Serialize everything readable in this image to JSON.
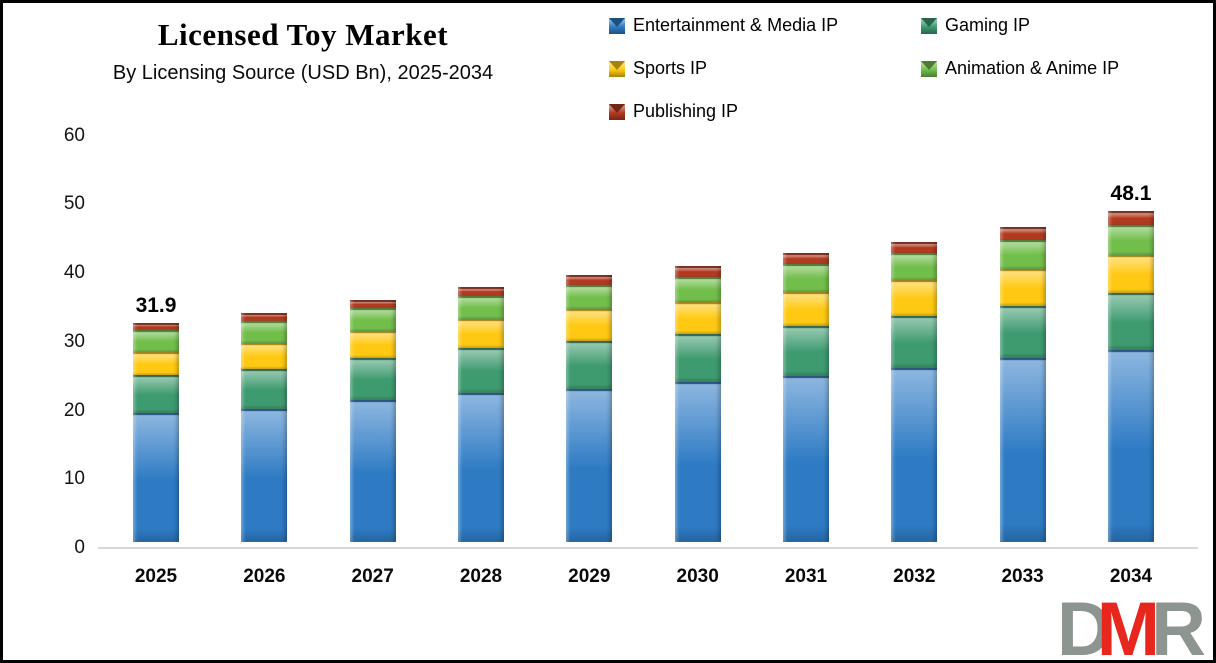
{
  "header": {
    "title": "Licensed Toy Market",
    "subtitle": "By Licensing Source (USD Bn), 2025-2034"
  },
  "watermark": {
    "letters": [
      "D",
      "M",
      "R"
    ],
    "gray": "#8C9590",
    "red": "#E7261D"
  },
  "chart_data": {
    "type": "bar",
    "stacked": true,
    "title": "Licensed Toy Market",
    "subtitle": "By Licensing Source (USD Bn), 2025-2034",
    "categories": [
      "2025",
      "2026",
      "2027",
      "2028",
      "2029",
      "2030",
      "2031",
      "2032",
      "2033",
      "2034"
    ],
    "series": [
      {
        "name": "Entertainment & Media IP",
        "color": "#2E7BC4",
        "values": [
          18.7,
          19.4,
          20.6,
          21.7,
          22.3,
          23.3,
          24.1,
          25.3,
          26.7,
          28.0
        ]
      },
      {
        "name": "Gaming IP",
        "color": "#3E9B70",
        "values": [
          5.6,
          5.8,
          6.2,
          6.5,
          7.0,
          6.9,
          7.3,
          7.6,
          7.6,
          8.2
        ]
      },
      {
        "name": "Sports IP",
        "color": "#FFC913",
        "values": [
          3.4,
          3.7,
          3.9,
          4.3,
          4.6,
          4.7,
          4.9,
          5.2,
          5.4,
          5.5
        ]
      },
      {
        "name": "Animation & Anime IP",
        "color": "#72BE4B",
        "values": [
          3.1,
          3.3,
          3.3,
          3.3,
          3.5,
          3.7,
          4.2,
          3.9,
          4.3,
          4.4
        ]
      },
      {
        "name": "Publishing IP",
        "color": "#B33A20",
        "values": [
          1.1,
          1.1,
          1.2,
          1.3,
          1.4,
          1.5,
          1.5,
          1.7,
          1.8,
          2.0
        ]
      }
    ],
    "totals": [
      31.9,
      33.3,
      35.2,
      37.1,
      38.8,
      40.1,
      42.0,
      43.7,
      45.8,
      48.1
    ],
    "bar_labels": [
      "31.9",
      "",
      "",
      "",
      "",
      "",
      "",
      "",
      "",
      "48.1"
    ],
    "ylim": [
      0,
      60
    ],
    "yticks": [
      0,
      10,
      20,
      30,
      40,
      50,
      60
    ],
    "grid": false,
    "legend_position": "top-right"
  }
}
